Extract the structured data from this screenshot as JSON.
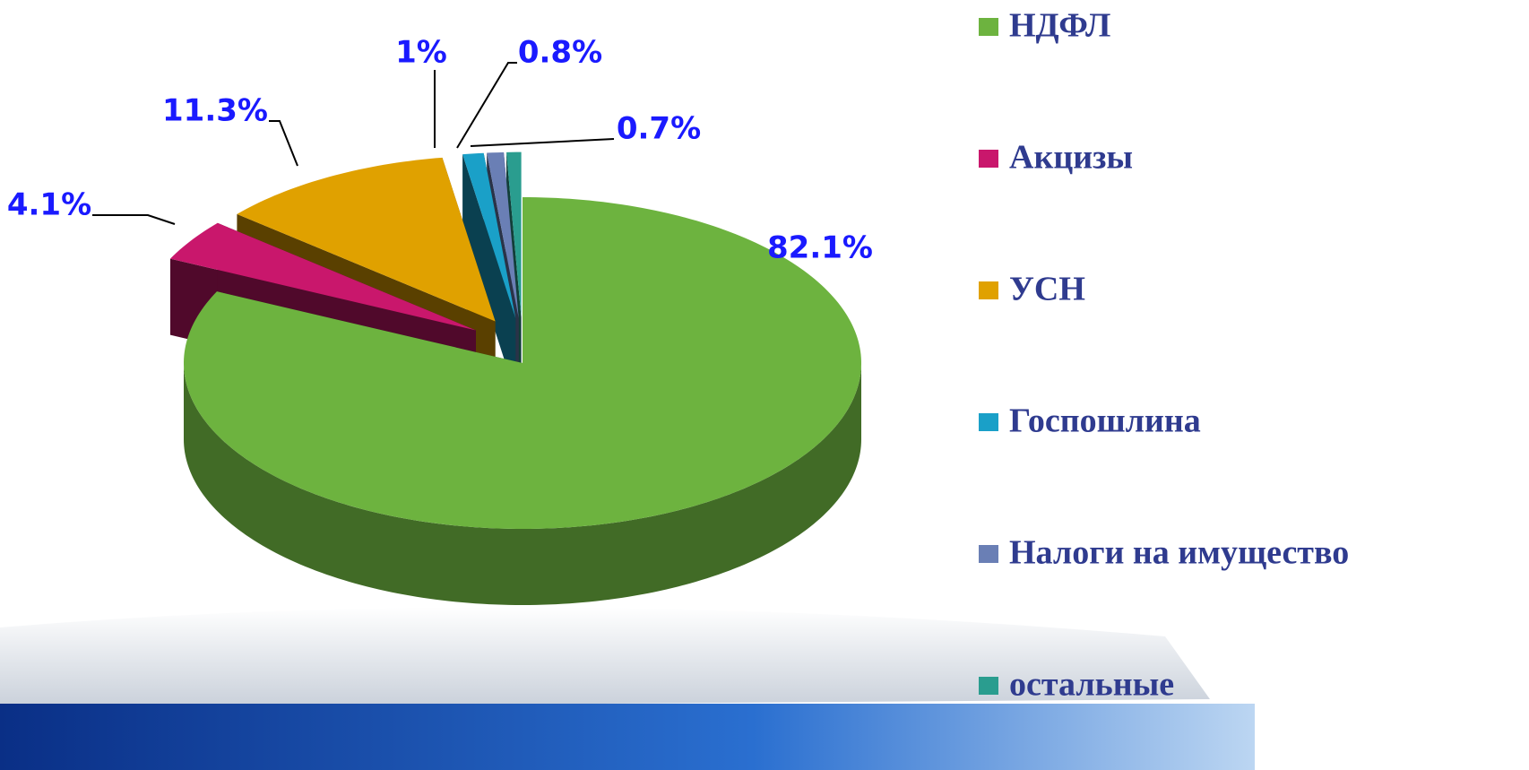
{
  "chart_data": {
    "type": "pie",
    "categories": [
      "НДФЛ",
      "Акцизы",
      "УСН",
      "Госпошлина",
      "Налоги на имущество",
      "остальные"
    ],
    "values": [
      82.1,
      4.1,
      11.3,
      1,
      0.8,
      0.7
    ],
    "value_labels": [
      "82.1%",
      "4.1%",
      "11.3%",
      "1%",
      "0.8%",
      "0.7%"
    ],
    "colors": [
      "#6db33f",
      "#c9176c",
      "#e0a100",
      "#1aa0c8",
      "#6a7fb5",
      "#2a9d8f"
    ],
    "legend": "right"
  }
}
